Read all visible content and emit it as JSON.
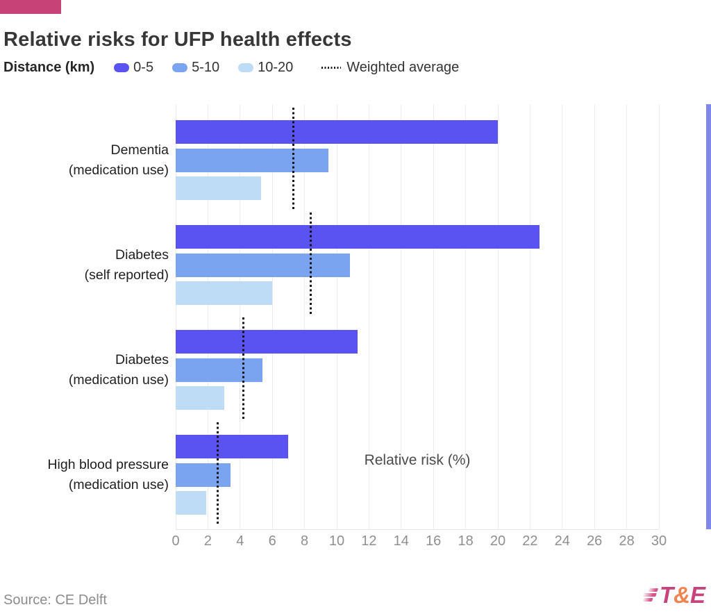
{
  "header": {
    "accent_color": "#c74277",
    "title": "Relative risks for UFP health effects"
  },
  "legend": {
    "title": "Distance (km)",
    "items": [
      {
        "label": "0-5",
        "color": "#5a52f1"
      },
      {
        "label": "5-10",
        "color": "#7aa3f0"
      },
      {
        "label": "10-20",
        "color": "#bedcf6"
      }
    ],
    "line_item_label": "Weighted average"
  },
  "chart_data": {
    "type": "bar",
    "orientation": "horizontal",
    "title": "Relative risks for UFP health effects",
    "xlabel": "Relative risk (%)",
    "xlim": [
      0,
      30
    ],
    "xticks": [
      0,
      2,
      4,
      6,
      8,
      10,
      12,
      14,
      16,
      18,
      20,
      22,
      24,
      26,
      28,
      30
    ],
    "grid": "vertical",
    "legend_position": "top",
    "categories": [
      [
        "Dementia",
        "(medication use)"
      ],
      [
        "Diabetes",
        "(self reported)"
      ],
      [
        "Diabetes",
        "(medication use)"
      ],
      [
        "High blood pressure",
        "(medication use)"
      ]
    ],
    "series": [
      {
        "name": "0-5",
        "color": "#5a52f1",
        "values": [
          20.0,
          22.6,
          11.3,
          7.0
        ]
      },
      {
        "name": "5-10",
        "color": "#7aa3f0",
        "values": [
          9.5,
          10.8,
          5.4,
          3.4
        ]
      },
      {
        "name": "10-20",
        "color": "#bedcf6",
        "values": [
          5.3,
          6.0,
          3.0,
          1.9
        ]
      }
    ],
    "weighted_average": {
      "name": "Weighted average",
      "style": "dotted-vertical-line",
      "color": "#141414",
      "values": [
        7.3,
        8.4,
        4.2,
        2.6
      ]
    }
  },
  "decor": {
    "right_edge_strip_color": "#8186e9"
  },
  "footer": {
    "source": "Source: CE Delft",
    "logo": {
      "t": "T",
      "amp": "&",
      "e": "E",
      "text_color": "#c8427c",
      "amp_color": "#ef8451",
      "stripe_color": "#d9538b"
    }
  }
}
